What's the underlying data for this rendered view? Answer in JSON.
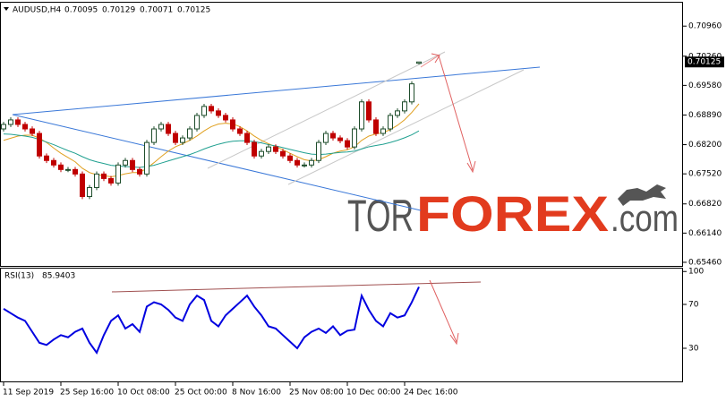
{
  "chart_data": [
    {
      "type": "candlestick",
      "title": "AUDUSD,H4",
      "categories": [
        "11 Sep 2019",
        null,
        null,
        null,
        null,
        null,
        null,
        null,
        "25 Sep 16:00",
        null,
        null,
        null,
        null,
        null,
        null,
        null,
        "10 Oct 08:00",
        null,
        null,
        null,
        null,
        null,
        null,
        null,
        "25 Oct 00:00",
        null,
        null,
        null,
        null,
        null,
        null,
        null,
        "8 Nov 16:00",
        null,
        null,
        null,
        null,
        null,
        null,
        null,
        "25 Nov 08:00",
        null,
        null,
        null,
        null,
        null,
        null,
        null,
        "10 Dec 00:00",
        null,
        null,
        null,
        null,
        null,
        null,
        null,
        "24 Dec 16:00",
        null,
        null
      ],
      "open": [
        0.68566,
        0.68671,
        0.68776,
        0.68671,
        0.68566,
        0.68461,
        0.67936,
        0.67831,
        0.67726,
        0.67621,
        0.67621,
        0.67516,
        0.66991,
        0.67201,
        0.67516,
        0.67411,
        0.67306,
        0.67726,
        0.67831,
        0.67621,
        0.67516,
        0.68251,
        0.68566,
        0.68671,
        0.68461,
        0.68251,
        0.68356,
        0.68566,
        0.68881,
        0.69091,
        0.68986,
        0.68881,
        0.68776,
        0.68566,
        0.68461,
        0.68251,
        0.67936,
        0.68041,
        0.68146,
        0.68041,
        0.67936,
        0.67831,
        0.67726,
        0.67726,
        0.67831,
        0.68251,
        0.68461,
        0.68356,
        0.68293,
        0.68146,
        0.68566,
        0.69196,
        0.68776,
        0.68461,
        0.68566,
        0.68881,
        0.68986,
        0.69196,
        0.70095
      ],
      "high": [
        0.68731,
        0.68836,
        0.68836,
        0.68731,
        0.68626,
        0.68521,
        0.67996,
        0.67891,
        0.67786,
        0.67681,
        0.67681,
        0.67576,
        0.67261,
        0.67576,
        0.67576,
        0.67471,
        0.67786,
        0.67891,
        0.67891,
        0.67681,
        0.68311,
        0.68626,
        0.68731,
        0.68731,
        0.68521,
        0.68416,
        0.68626,
        0.68941,
        0.69151,
        0.69151,
        0.69046,
        0.68941,
        0.68836,
        0.68626,
        0.68521,
        0.68311,
        0.68101,
        0.68206,
        0.68206,
        0.68101,
        0.67996,
        0.67891,
        0.67786,
        0.67891,
        0.68311,
        0.68521,
        0.68521,
        0.68416,
        0.68353,
        0.68626,
        0.69256,
        0.69256,
        0.68836,
        0.68626,
        0.68941,
        0.69046,
        0.69256,
        0.69676,
        0.70129
      ],
      "low": [
        0.68506,
        0.68611,
        0.68611,
        0.68506,
        0.68401,
        0.67876,
        0.67771,
        0.67666,
        0.67561,
        0.67561,
        0.67456,
        0.66931,
        0.66931,
        0.67141,
        0.67351,
        0.67246,
        0.67246,
        0.67666,
        0.67561,
        0.67456,
        0.67456,
        0.68191,
        0.68506,
        0.68401,
        0.68191,
        0.68191,
        0.68296,
        0.68506,
        0.68821,
        0.68926,
        0.68821,
        0.68716,
        0.68506,
        0.68401,
        0.68191,
        0.67876,
        0.67876,
        0.67981,
        0.67981,
        0.67876,
        0.67771,
        0.67666,
        0.67666,
        0.67666,
        0.67771,
        0.68191,
        0.68296,
        0.68233,
        0.68086,
        0.68086,
        0.68506,
        0.68716,
        0.68401,
        0.68401,
        0.68506,
        0.68821,
        0.68926,
        0.69136,
        0.70071
      ],
      "close": [
        0.68671,
        0.68776,
        0.68671,
        0.68566,
        0.68461,
        0.67936,
        0.67831,
        0.67726,
        0.67621,
        0.67621,
        0.67516,
        0.66991,
        0.67201,
        0.67516,
        0.67411,
        0.67306,
        0.67726,
        0.67831,
        0.67621,
        0.67516,
        0.68251,
        0.68566,
        0.68671,
        0.68461,
        0.68251,
        0.68356,
        0.68566,
        0.68881,
        0.69091,
        0.68986,
        0.68881,
        0.68776,
        0.68566,
        0.68461,
        0.68251,
        0.67936,
        0.68041,
        0.68146,
        0.68041,
        0.67936,
        0.67831,
        0.67726,
        0.67726,
        0.67831,
        0.68251,
        0.68461,
        0.68356,
        0.68293,
        0.68146,
        0.68566,
        0.69196,
        0.68776,
        0.68461,
        0.68566,
        0.68881,
        0.68986,
        0.69196,
        0.69616,
        0.70125
      ],
      "up_color": "#1e4d2b",
      "down_color": "#c00000",
      "series": [
        {
          "color": "#e0a020",
          "values": [
            0.683,
            0.6835,
            0.684,
            0.6842,
            0.6842,
            0.6835,
            0.6825,
            0.6812,
            0.68,
            0.679,
            0.678,
            0.6765,
            0.6755,
            0.675,
            0.6748,
            0.6745,
            0.6748,
            0.6752,
            0.6755,
            0.6755,
            0.6765,
            0.6778,
            0.6792,
            0.6805,
            0.6815,
            0.6822,
            0.683,
            0.684,
            0.6852,
            0.6862,
            0.6868,
            0.687,
            0.6868,
            0.6862,
            0.6852,
            0.684,
            0.683,
            0.6822,
            0.6815,
            0.6808,
            0.68,
            0.6792,
            0.6785,
            0.6782,
            0.6785,
            0.6792,
            0.68,
            0.6805,
            0.6808,
            0.6815,
            0.683,
            0.684,
            0.6845,
            0.6848,
            0.6855,
            0.6865,
            0.6878,
            0.6895,
            0.6915
          ]
        },
        {
          "color": "#20a090",
          "values": [
            0.6845,
            0.6844,
            0.6842,
            0.684,
            0.6837,
            0.6832,
            0.6826,
            0.682,
            0.6813,
            0.6806,
            0.68,
            0.6792,
            0.6785,
            0.678,
            0.6776,
            0.6772,
            0.677,
            0.6769,
            0.6768,
            0.6767,
            0.6769,
            0.6772,
            0.6777,
            0.6782,
            0.6787,
            0.6792,
            0.6797,
            0.6803,
            0.681,
            0.6816,
            0.6821,
            0.6825,
            0.6828,
            0.6829,
            0.6829,
            0.6827,
            0.6824,
            0.682,
            0.6817,
            0.6813,
            0.6809,
            0.6805,
            0.6801,
            0.6798,
            0.6797,
            0.6798,
            0.68,
            0.6802,
            0.6803,
            0.6805,
            0.681,
            0.6815,
            0.6818,
            0.6821,
            0.6825,
            0.683,
            0.6836,
            0.6843,
            0.6852
          ]
        }
      ],
      "ylim": [
        0.65376,
        0.71506
      ],
      "yticks": [
        {
          "value": 0.7096,
          "label": "0.70960"
        },
        {
          "value": 0.7026,
          "label": "0.70260"
        },
        {
          "value": 0.6958,
          "label": "0.69580"
        },
        {
          "value": 0.6889,
          "label": "0.68890"
        },
        {
          "value": 0.682,
          "label": "0.68200"
        },
        {
          "value": 0.6752,
          "label": "0.67520"
        },
        {
          "value": 0.6682,
          "label": "0.66820"
        },
        {
          "value": 0.6614,
          "label": "0.66140"
        },
        {
          "value": 0.6546,
          "label": "0.65460"
        }
      ],
      "grid": false
    },
    {
      "type": "line",
      "title": "RSI(13)",
      "color": "#0000e0",
      "values": [
        66,
        62,
        58,
        55,
        45,
        35,
        33,
        38,
        42,
        40,
        45,
        48,
        35,
        26,
        42,
        55,
        60,
        48,
        52,
        45,
        68,
        72,
        70,
        65,
        58,
        55,
        70,
        78,
        74,
        55,
        50,
        60,
        66,
        72,
        78,
        68,
        60,
        50,
        48,
        42,
        36,
        30,
        40,
        45,
        48,
        44,
        50,
        42,
        46,
        47,
        78,
        65,
        55,
        50,
        62,
        58,
        60,
        72,
        85.9403
      ],
      "ylim": [
        -0.2,
        102.65
      ],
      "yticks": [
        100,
        70,
        30
      ],
      "grid": false
    }
  ],
  "watermark": [
    "TOR",
    "FOREX",
    ".com"
  ]
}
